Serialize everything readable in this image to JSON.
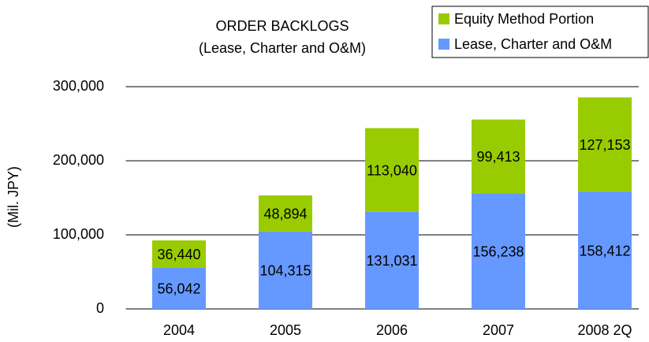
{
  "chart_data": {
    "type": "stacked_bar",
    "title": "ORDER BACKLOGS",
    "subtitle": "(Lease, Charter and O&M)",
    "y_label": "(Mil. JPY)",
    "categories": [
      "2004",
      "2005",
      "2006",
      "2007",
      "2008 2Q"
    ],
    "series": [
      {
        "name": "Lease, Charter and O&M",
        "color": "#6699ff",
        "values": [
          56042,
          104315,
          131031,
          156238,
          158412
        ],
        "value_labels": [
          "56,042",
          "104,315",
          "131,031",
          "156,238",
          "158,412"
        ]
      },
      {
        "name": "Equity Method Portion",
        "color": "#99cc00",
        "values": [
          36440,
          48894,
          113040,
          99413,
          127153
        ],
        "value_labels": [
          "36,440",
          "48,894",
          "113,040",
          "99,413",
          "127,153"
        ]
      }
    ],
    "ylim": [
      0,
      300000
    ],
    "yticks": [
      0,
      {
        "value": 100000,
        "label": "100,000"
      },
      {
        "value": 200000,
        "label": "200,000"
      },
      {
        "value": 300000,
        "label": "300,000"
      }
    ],
    "grid": true,
    "legend": "top-right"
  }
}
